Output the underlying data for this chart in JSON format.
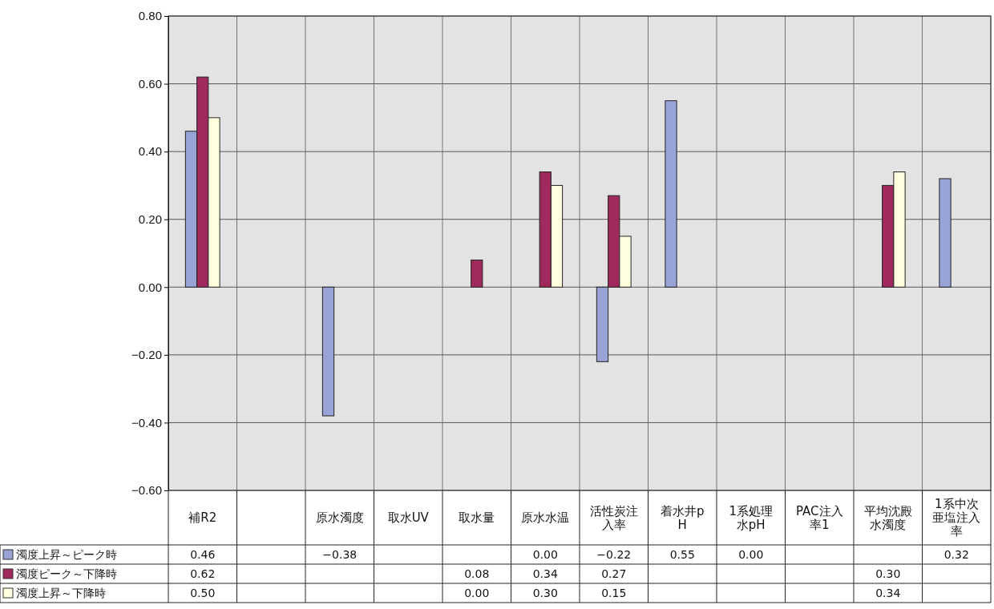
{
  "chart_data": {
    "type": "bar",
    "categories": [
      "補R2",
      null,
      "原水濁度",
      "取水UV",
      "取水量",
      "原水水温",
      "活性炭注入率",
      "着水井pH",
      "1系処理水pH",
      "PAC注入率1",
      "平均沈殿水濁度",
      "1系中次亜塩注入率"
    ],
    "series": [
      {
        "name": "濁度上昇～ピーク時",
        "color": "#99a3d6",
        "values": [
          0.46,
          null,
          -0.38,
          null,
          null,
          0,
          -0.22,
          0.55,
          0,
          null,
          null,
          0.32
        ],
        "value_labels": [
          "0.46",
          null,
          "−0.38",
          null,
          null,
          "0.00",
          "−0.22",
          "0.55",
          "0.00",
          null,
          null,
          "0.32"
        ]
      },
      {
        "name": "濁度ピーク～下降時",
        "color": "#a02a5e",
        "values": [
          0.62,
          null,
          null,
          null,
          0.08,
          0.34,
          0.27,
          null,
          null,
          null,
          0.3,
          null
        ],
        "value_labels": [
          "0.62",
          null,
          null,
          null,
          "0.08",
          "0.34",
          "0.27",
          null,
          null,
          null,
          "0.30",
          null
        ]
      },
      {
        "name": "濁度上昇～下降時",
        "color": "#ffffe0",
        "values": [
          0.5,
          null,
          null,
          null,
          0,
          0.3,
          0.15,
          null,
          null,
          null,
          0.34,
          null
        ],
        "value_labels": [
          "0.50",
          null,
          null,
          null,
          "0.00",
          "0.30",
          "0.15",
          null,
          null,
          null,
          "0.34",
          null
        ]
      }
    ],
    "ylim": [
      -0.6,
      0.8
    ],
    "yticks": [
      {
        "value": -0.6,
        "label": "−0.60"
      },
      {
        "value": -0.4,
        "label": "−0.40"
      },
      {
        "value": -0.2,
        "label": "−0.20"
      },
      {
        "value": 0,
        "label": "0.00"
      },
      {
        "value": 0.2,
        "label": "0.20"
      },
      {
        "value": 0.4,
        "label": "0.40"
      },
      {
        "value": 0.6,
        "label": "0.60"
      },
      {
        "value": 0.8,
        "label": "0.80"
      }
    ],
    "grid": true,
    "legend": "bottom left"
  }
}
